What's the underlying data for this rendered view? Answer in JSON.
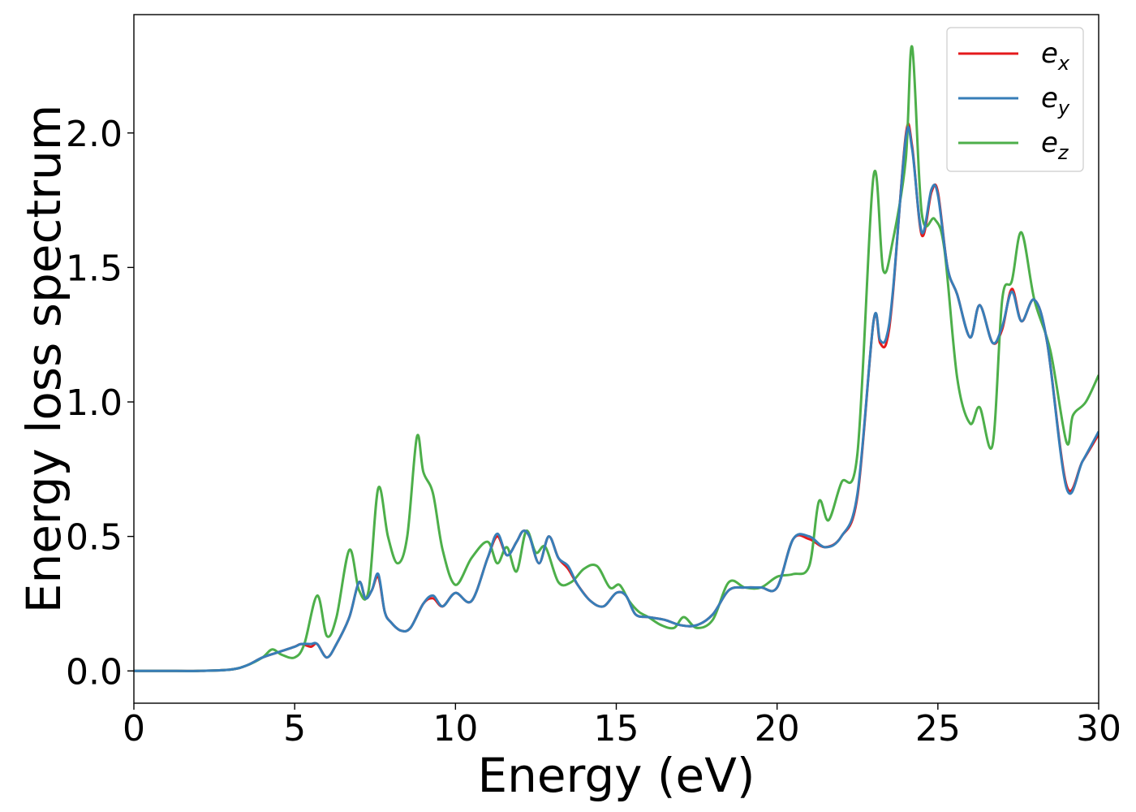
{
  "chart_data": {
    "type": "line",
    "xlabel": "Energy (eV)",
    "ylabel": "Energy loss spectrum",
    "xlim": [
      0,
      30
    ],
    "ylim": [
      -0.12,
      2.44
    ],
    "xticks": [
      0,
      5,
      10,
      15,
      20,
      25,
      30
    ],
    "yticks": [
      0.0,
      0.5,
      1.0,
      1.5,
      2.0
    ],
    "xtick_labels": [
      "0",
      "5",
      "10",
      "15",
      "20",
      "25",
      "30"
    ],
    "ytick_labels": [
      "0.0",
      "0.5",
      "1.0",
      "1.5",
      "2.0"
    ],
    "grid": false,
    "legend_position": "top-right",
    "series": [
      {
        "name": "ex",
        "label_main": "e",
        "label_sub": "x",
        "color": "#e41a1c",
        "x": [
          0,
          1,
          2,
          3,
          3.5,
          4,
          4.5,
          5,
          5.2,
          5.5,
          5.7,
          6,
          6.3,
          6.7,
          7,
          7.2,
          7.4,
          7.6,
          7.8,
          8,
          8.3,
          8.6,
          9,
          9.3,
          9.6,
          10,
          10.5,
          11,
          11.3,
          11.6,
          11.9,
          12.1,
          12.3,
          12.6,
          12.9,
          13.2,
          13.5,
          13.8,
          14.2,
          14.6,
          15,
          15.3,
          15.6,
          16,
          16.5,
          17,
          17.5,
          18,
          18.5,
          19,
          19.5,
          20,
          20.5,
          21,
          21.5,
          22,
          22.5,
          23,
          23.2,
          23.4,
          23.6,
          24,
          24.2,
          24.5,
          24.8,
          25,
          25.3,
          25.6,
          26,
          26.3,
          26.7,
          27,
          27.3,
          27.6,
          28,
          28.4,
          29,
          29.5,
          30
        ],
        "y": [
          0,
          0,
          0,
          0.005,
          0.02,
          0.05,
          0.07,
          0.09,
          0.1,
          0.09,
          0.1,
          0.05,
          0.1,
          0.2,
          0.33,
          0.27,
          0.3,
          0.35,
          0.22,
          0.18,
          0.15,
          0.16,
          0.25,
          0.27,
          0.24,
          0.29,
          0.26,
          0.42,
          0.5,
          0.43,
          0.48,
          0.52,
          0.5,
          0.4,
          0.5,
          0.42,
          0.38,
          0.32,
          0.26,
          0.24,
          0.29,
          0.28,
          0.21,
          0.2,
          0.19,
          0.17,
          0.17,
          0.21,
          0.3,
          0.31,
          0.31,
          0.31,
          0.49,
          0.49,
          0.46,
          0.5,
          0.65,
          1.3,
          1.22,
          1.22,
          1.4,
          1.99,
          1.95,
          1.62,
          1.78,
          1.78,
          1.5,
          1.4,
          1.24,
          1.36,
          1.22,
          1.27,
          1.42,
          1.3,
          1.38,
          1.22,
          0.69,
          0.78,
          0.88
        ]
      },
      {
        "name": "ey",
        "label_main": "e",
        "label_sub": "y",
        "color": "#377eb8",
        "x": [
          0,
          1,
          2,
          3,
          3.5,
          4,
          4.5,
          5,
          5.2,
          5.5,
          5.7,
          6,
          6.3,
          6.7,
          7,
          7.2,
          7.4,
          7.6,
          7.8,
          8,
          8.3,
          8.6,
          9,
          9.3,
          9.6,
          10,
          10.5,
          11,
          11.3,
          11.6,
          11.9,
          12.1,
          12.3,
          12.6,
          12.9,
          13.2,
          13.5,
          13.8,
          14.2,
          14.6,
          15,
          15.3,
          15.6,
          16,
          16.5,
          17,
          17.5,
          18,
          18.5,
          19,
          19.5,
          20,
          20.5,
          21,
          21.5,
          22,
          22.5,
          23,
          23.2,
          23.4,
          23.6,
          24,
          24.2,
          24.5,
          24.8,
          25,
          25.3,
          25.6,
          26,
          26.3,
          26.7,
          27,
          27.3,
          27.6,
          28,
          28.4,
          29,
          29.5,
          30
        ],
        "y": [
          0,
          0,
          0,
          0.005,
          0.02,
          0.05,
          0.07,
          0.09,
          0.1,
          0.1,
          0.1,
          0.05,
          0.1,
          0.2,
          0.33,
          0.27,
          0.3,
          0.36,
          0.22,
          0.18,
          0.15,
          0.16,
          0.25,
          0.28,
          0.24,
          0.29,
          0.26,
          0.42,
          0.51,
          0.43,
          0.48,
          0.52,
          0.5,
          0.4,
          0.5,
          0.42,
          0.39,
          0.32,
          0.26,
          0.24,
          0.29,
          0.28,
          0.21,
          0.2,
          0.19,
          0.17,
          0.17,
          0.21,
          0.3,
          0.31,
          0.31,
          0.31,
          0.49,
          0.5,
          0.46,
          0.5,
          0.66,
          1.3,
          1.23,
          1.24,
          1.41,
          1.98,
          1.94,
          1.63,
          1.79,
          1.77,
          1.5,
          1.4,
          1.24,
          1.36,
          1.22,
          1.28,
          1.41,
          1.3,
          1.38,
          1.22,
          0.68,
          0.78,
          0.89
        ]
      },
      {
        "name": "ez",
        "label_main": "e",
        "label_sub": "z",
        "color": "#4daf4a",
        "x": [
          0,
          1,
          2,
          3,
          3.5,
          4,
          4.3,
          4.6,
          5,
          5.3,
          5.7,
          6,
          6.3,
          6.7,
          7,
          7.3,
          7.6,
          7.9,
          8.2,
          8.5,
          8.8,
          9,
          9.3,
          9.6,
          10,
          10.5,
          11,
          11.3,
          11.6,
          11.9,
          12.2,
          12.5,
          12.8,
          13.2,
          13.6,
          14,
          14.4,
          14.8,
          15.1,
          15.4,
          15.7,
          16,
          16.4,
          16.8,
          17.1,
          17.5,
          18,
          18.5,
          19,
          19.5,
          20,
          20.5,
          21,
          21.3,
          21.6,
          22,
          22.5,
          23,
          23.3,
          23.6,
          24,
          24.2,
          24.5,
          24.9,
          25.2,
          25.6,
          26,
          26.3,
          26.7,
          27,
          27.3,
          27.6,
          28,
          28.5,
          29,
          29.2,
          29.6,
          30
        ],
        "y": [
          0,
          0,
          0,
          0.005,
          0.02,
          0.05,
          0.08,
          0.06,
          0.05,
          0.1,
          0.28,
          0.13,
          0.2,
          0.45,
          0.3,
          0.3,
          0.68,
          0.5,
          0.4,
          0.5,
          0.87,
          0.74,
          0.66,
          0.45,
          0.32,
          0.42,
          0.48,
          0.4,
          0.46,
          0.37,
          0.52,
          0.44,
          0.46,
          0.33,
          0.33,
          0.38,
          0.39,
          0.31,
          0.32,
          0.26,
          0.22,
          0.2,
          0.17,
          0.16,
          0.2,
          0.16,
          0.19,
          0.33,
          0.31,
          0.31,
          0.35,
          0.36,
          0.39,
          0.63,
          0.56,
          0.7,
          0.81,
          1.84,
          1.49,
          1.6,
          1.9,
          2.32,
          1.7,
          1.68,
          1.57,
          1.09,
          0.92,
          0.98,
          0.84,
          1.38,
          1.45,
          1.63,
          1.38,
          1.19,
          0.85,
          0.95,
          1.0,
          1.1
        ]
      }
    ]
  }
}
